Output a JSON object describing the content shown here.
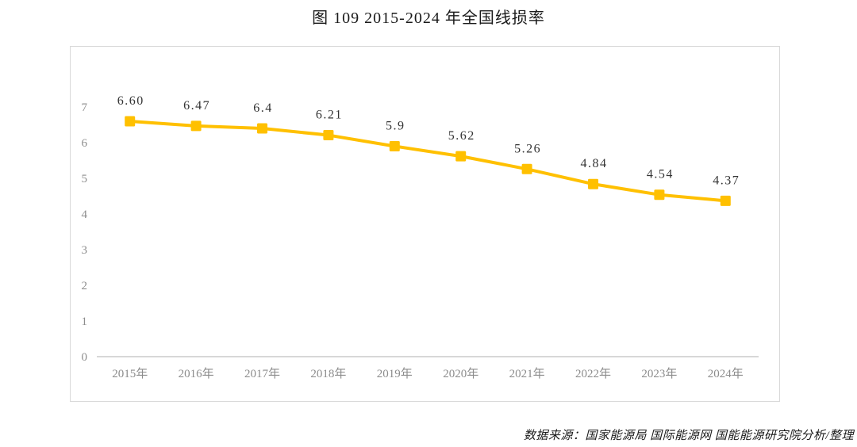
{
  "chart_data": {
    "type": "line",
    "title": "图 109 2015-2024 年全国线损率",
    "categories": [
      "2015年",
      "2016年",
      "2017年",
      "2018年",
      "2019年",
      "2020年",
      "2021年",
      "2022年",
      "2023年",
      "2024年"
    ],
    "series": [
      {
        "name": "全国线损率",
        "values": [
          6.6,
          6.47,
          6.4,
          6.21,
          5.9,
          5.62,
          5.26,
          4.84,
          4.54,
          4.37
        ],
        "labels": [
          "6.60",
          "6.47",
          "6.4",
          "6.21",
          "5.9",
          "5.62",
          "5.26",
          "4.84",
          "4.54",
          "4.37"
        ],
        "color": "#FFC000",
        "marker": "square"
      }
    ],
    "xlabel": "",
    "ylabel": "",
    "ylim": [
      0,
      7
    ],
    "yticks": [
      0,
      1,
      2,
      3,
      4,
      5,
      6,
      7
    ],
    "grid": false,
    "legend_position": "none",
    "data_labels": true
  },
  "source": {
    "text": "数据来源：国家能源局 国际能源网 国能能源研究院分析/整理"
  },
  "colors": {
    "series": "#FFC000",
    "axis_line": "#BFBFBF",
    "tick_label": "#8C8C8C",
    "data_label": "#333333",
    "frame_border": "#D9D9D9",
    "background": "#FFFFFF"
  }
}
